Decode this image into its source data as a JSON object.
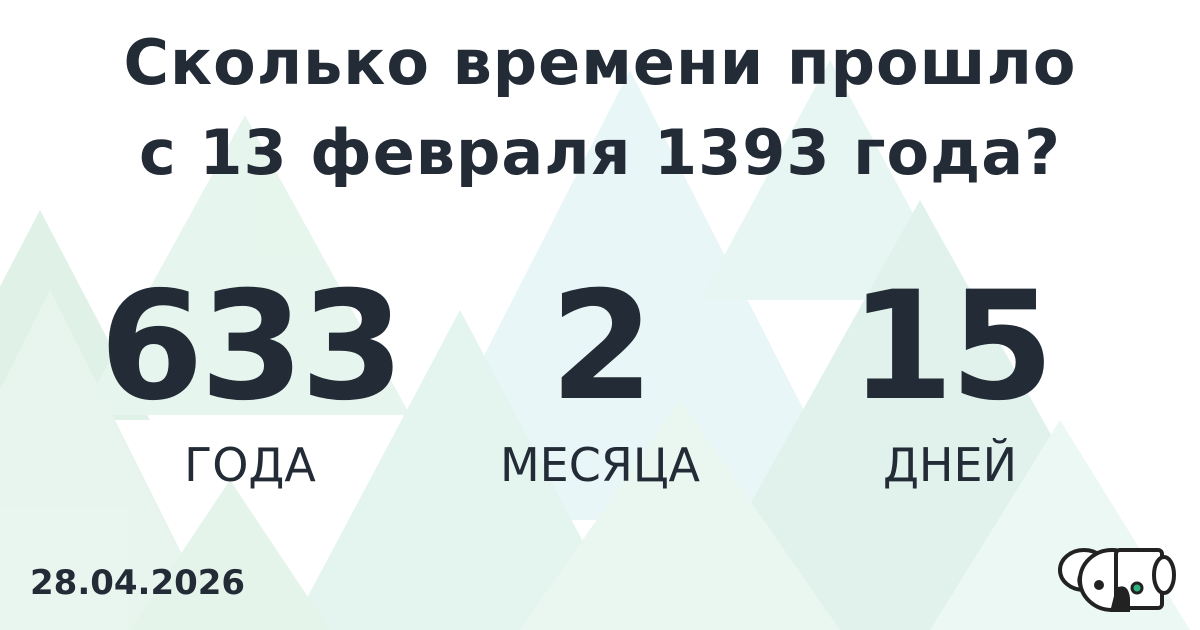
{
  "title_line1": "Сколько времени прошло",
  "title_line2": "с 13 февраля 1393 года?",
  "result": [
    {
      "value": "633",
      "unit": "ГОДА"
    },
    {
      "value": "2",
      "unit": "МЕСЯЦА"
    },
    {
      "value": "15",
      "unit": "ДНЕЙ"
    }
  ],
  "date": "28.04.2026",
  "logo": "koala-robot-logo",
  "colors": {
    "text": "#222b36",
    "accent": "#2db37e"
  }
}
